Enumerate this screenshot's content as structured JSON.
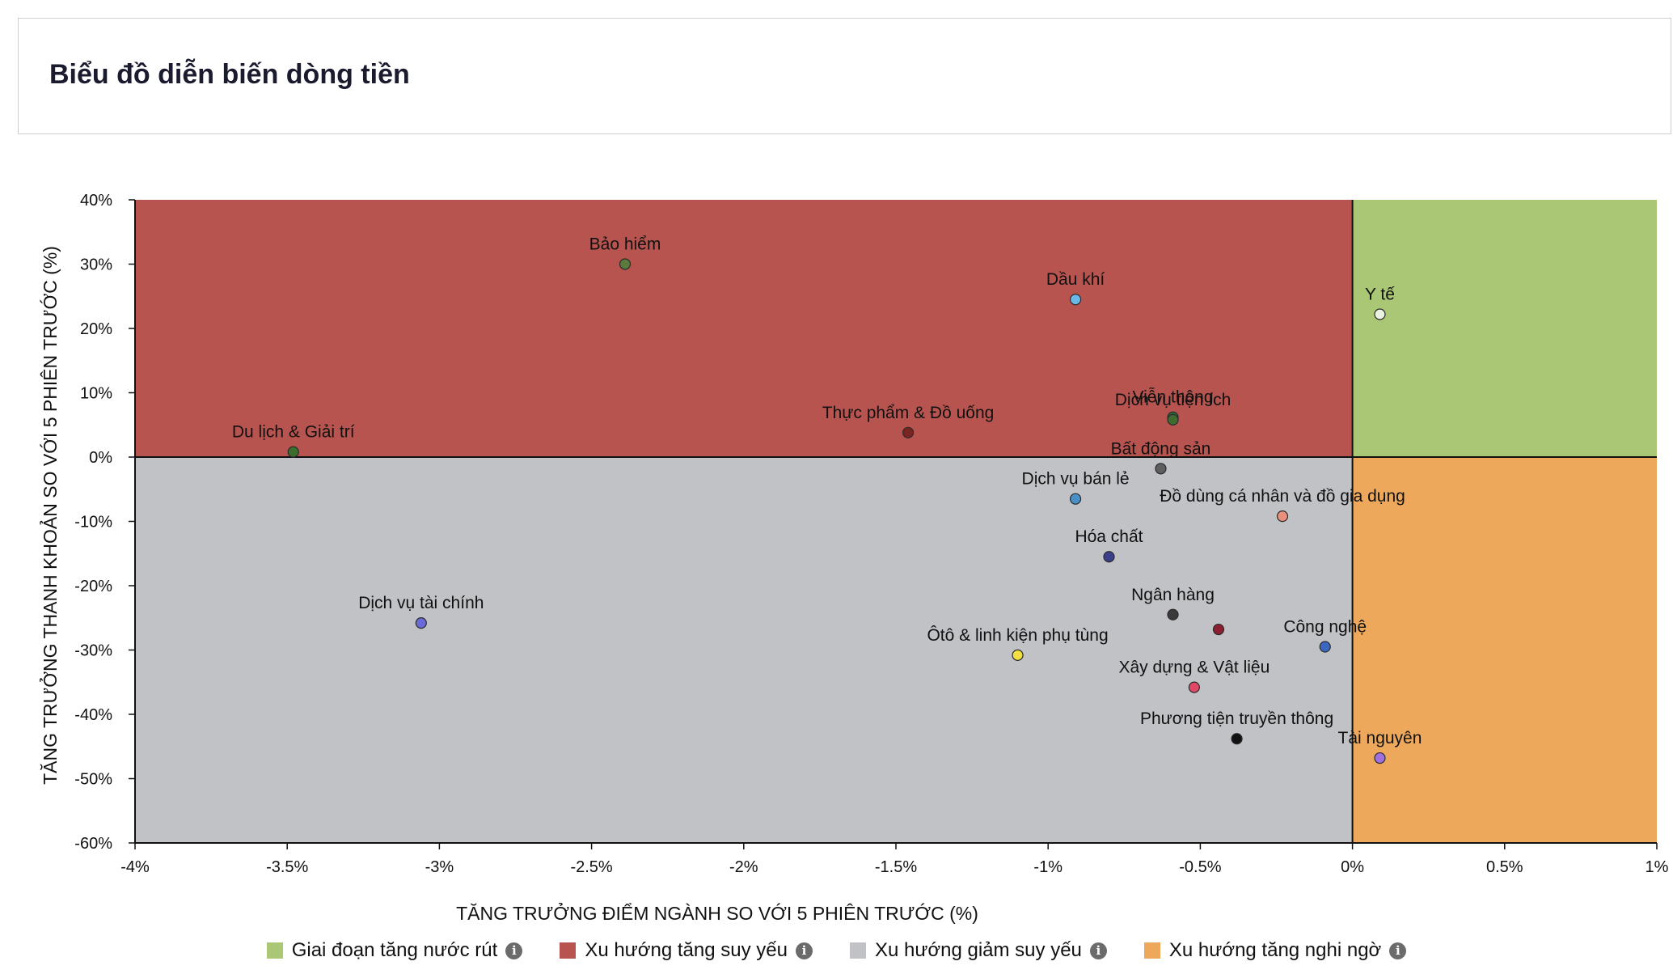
{
  "header": {
    "title": "Biểu đồ diễn biến dòng tiền"
  },
  "chart_data": {
    "type": "scatter",
    "xlabel": "TĂNG TRƯỞNG ĐIỂM NGÀNH SO VỚI 5 PHIÊN TRƯỚC (%)",
    "ylabel": "TĂNG TRƯỞNG THANH KHOẢN SO VỚI 5 PHIÊN TRƯỚC (%)",
    "xlim": [
      -4,
      1
    ],
    "ylim": [
      -60,
      40
    ],
    "x_ticks": [
      {
        "value": -4,
        "label": "-4%"
      },
      {
        "value": -3.5,
        "label": "-3.5%"
      },
      {
        "value": -3,
        "label": "-3%"
      },
      {
        "value": -2.5,
        "label": "-2.5%"
      },
      {
        "value": -2,
        "label": "-2%"
      },
      {
        "value": -1.5,
        "label": "-1.5%"
      },
      {
        "value": -1,
        "label": "-1%"
      },
      {
        "value": -0.5,
        "label": "-0.5%"
      },
      {
        "value": 0,
        "label": "0%"
      },
      {
        "value": 0.5,
        "label": "0.5%"
      },
      {
        "value": 1,
        "label": "1%"
      }
    ],
    "y_ticks": [
      {
        "value": 40,
        "label": "40%"
      },
      {
        "value": 30,
        "label": "30%"
      },
      {
        "value": 20,
        "label": "20%"
      },
      {
        "value": 10,
        "label": "10%"
      },
      {
        "value": 0,
        "label": "0%"
      },
      {
        "value": -10,
        "label": "-10%"
      },
      {
        "value": -20,
        "label": "-20%"
      },
      {
        "value": -30,
        "label": "-30%"
      },
      {
        "value": -40,
        "label": "-40%"
      },
      {
        "value": -50,
        "label": "-50%"
      },
      {
        "value": -60,
        "label": "-60%"
      }
    ],
    "quadrants": [
      {
        "name": "Giai đoạn tăng nước rút",
        "color": "#a9c775",
        "x": [
          0,
          1
        ],
        "y": [
          0,
          40
        ]
      },
      {
        "name": "Xu hướng tăng suy yếu",
        "color": "#b8544f",
        "x": [
          -4,
          0
        ],
        "y": [
          0,
          40
        ]
      },
      {
        "name": "Xu hướng giảm suy yếu",
        "color": "#c1c2c6",
        "x": [
          -4,
          0
        ],
        "y": [
          -60,
          0
        ]
      },
      {
        "name": "Xu hướng tăng nghi ngờ",
        "color": "#eea85c",
        "x": [
          0,
          1
        ],
        "y": [
          -60,
          0
        ]
      }
    ],
    "points": [
      {
        "label": "Bảo hiểm",
        "x": -2.39,
        "y": 30,
        "color": "#5a7a3e"
      },
      {
        "label": "Dầu khí",
        "x": -0.91,
        "y": 24.5,
        "color": "#6bb8e8"
      },
      {
        "label": "Y tế",
        "x": 0.09,
        "y": 22.2,
        "color": "#eaf3e0"
      },
      {
        "label": "Viễn thông",
        "x": -0.59,
        "y": 6.2,
        "color": "#2d6a3a"
      },
      {
        "label": "Thực phẩm & Đồ uống",
        "x": -1.46,
        "y": 3.8,
        "color": "#7a2520"
      },
      {
        "label": "Dịch vụ tiện ích",
        "x": -0.59,
        "y": 5.8,
        "color": "#3e6b2e"
      },
      {
        "label": "Du lịch & Giải trí",
        "x": -3.48,
        "y": 0.8,
        "color": "#3b6d2c"
      },
      {
        "label": "Bất động sản",
        "x": -0.63,
        "y": -1.8,
        "color": "#5e5e5e"
      },
      {
        "label": "Dịch vụ bán lẻ",
        "x": -0.91,
        "y": -6.5,
        "color": "#4a90c8"
      },
      {
        "label": "Đồ dùng cá nhân và đồ gia dụng",
        "x": -0.23,
        "y": -9.2,
        "color": "#e8907c"
      },
      {
        "label": "Hóa chất",
        "x": -0.8,
        "y": -15.5,
        "color": "#3a3f8a"
      },
      {
        "label": "Dịch vụ tài chính",
        "x": -3.06,
        "y": -25.8,
        "color": "#6a6ad8"
      },
      {
        "label": "Ngân hàng",
        "x": -0.59,
        "y": -24.5,
        "color": "#3a3a3a"
      },
      {
        "label": "",
        "x": -0.44,
        "y": -26.8,
        "color": "#8a2030"
      },
      {
        "label": "Công nghệ",
        "x": -0.09,
        "y": -29.5,
        "color": "#3a68c0"
      },
      {
        "label": "Ôtô & linh kiện phụ tùng",
        "x": -1.1,
        "y": -30.8,
        "color": "#f2e040"
      },
      {
        "label": "Xây dựng & Vật liệu",
        "x": -0.52,
        "y": -35.8,
        "color": "#e04868"
      },
      {
        "label": "Phương tiện truyền thông",
        "x": -0.38,
        "y": -43.8,
        "color": "#111111"
      },
      {
        "label": "Tài nguyên",
        "x": 0.09,
        "y": -46.8,
        "color": "#a070e0"
      }
    ],
    "legend": [
      {
        "label": "Giai đoạn tăng nước rút",
        "color": "#a9c775",
        "icon": "info-icon",
        "icon_glyph": "i"
      },
      {
        "label": "Xu hướng tăng suy yếu",
        "color": "#b8544f",
        "icon": "info-icon",
        "icon_glyph": "i"
      },
      {
        "label": "Xu hướng giảm suy yếu",
        "color": "#c1c2c6",
        "icon": "info-icon",
        "icon_glyph": "i"
      },
      {
        "label": "Xu hướng tăng nghi ngờ",
        "color": "#eea85c",
        "icon": "info-icon",
        "icon_glyph": "i"
      }
    ]
  }
}
